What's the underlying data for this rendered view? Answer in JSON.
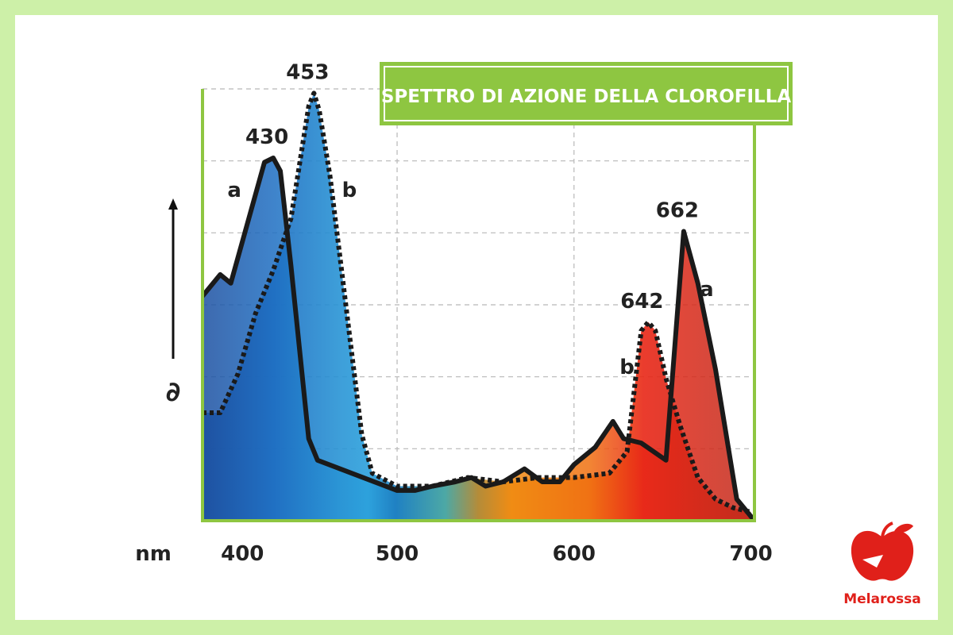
{
  "chart_data": {
    "type": "area",
    "title": "SPETTRO DI AZIONE DELLA CLOROFILLA",
    "xlabel": "nm",
    "ylabel": "∂",
    "xlim": [
      390,
      702
    ],
    "ylim": [
      0,
      100
    ],
    "xticks": [
      "400",
      "500",
      "600",
      "700"
    ],
    "xtick_values": [
      400,
      500,
      600,
      700
    ],
    "grid": true,
    "series": [
      {
        "name": "a",
        "style": "solid",
        "x": [
          390,
          400,
          406,
          425,
          430,
          434,
          440,
          450,
          455,
          500,
          510,
          520,
          533,
          542,
          550,
          560,
          572,
          582,
          592,
          600,
          612,
          622,
          628,
          638,
          652,
          662,
          670,
          680,
          692,
          702
        ],
        "y": [
          52,
          57,
          55,
          83,
          84,
          81,
          59,
          19,
          14,
          7,
          7,
          8,
          9,
          10,
          8,
          9,
          12,
          9,
          9,
          13,
          17,
          23,
          19,
          18,
          14,
          67,
          55,
          35,
          5,
          0
        ],
        "peak_label": [
          "430",
          "662"
        ]
      },
      {
        "name": "b",
        "style": "dashed",
        "x": [
          390,
          400,
          410,
          420,
          430,
          435,
          440,
          450,
          453,
          456,
          462,
          468,
          474,
          480,
          486,
          500,
          520,
          540,
          560,
          580,
          600,
          620,
          630,
          638,
          642,
          646,
          652,
          660,
          670,
          680,
          690,
          700
        ],
        "y": [
          25,
          25,
          34,
          48,
          58,
          64,
          70,
          96,
          99,
          95,
          80,
          60,
          40,
          20,
          11,
          8,
          8,
          10,
          9,
          10,
          10,
          11,
          16,
          44,
          46,
          44,
          33,
          22,
          10,
          5,
          3,
          2
        ],
        "peak_label": [
          "453",
          "642"
        ]
      }
    ],
    "annotations": [
      {
        "text": "a",
        "x": 408,
        "y": 75
      },
      {
        "text": "b",
        "x": 473,
        "y": 75
      },
      {
        "text": "b",
        "x": 630,
        "y": 34
      },
      {
        "text": "a",
        "x": 675,
        "y": 52
      }
    ]
  },
  "brand": {
    "name": "Melarossa",
    "color": "#e0201a"
  }
}
